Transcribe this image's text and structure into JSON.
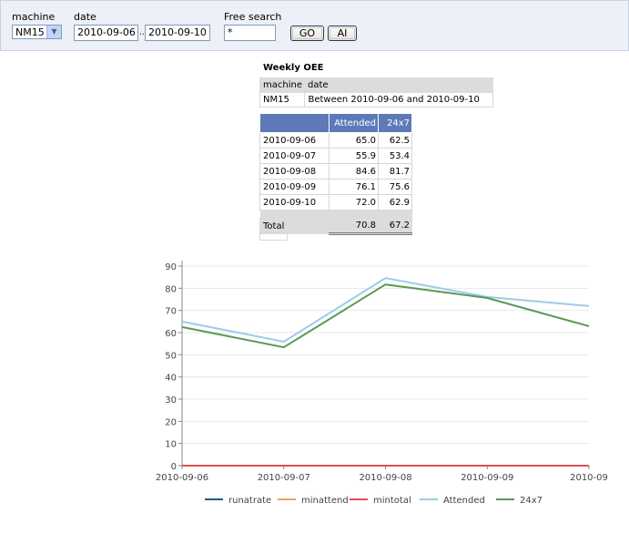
{
  "toolbar": {
    "machine_label": "machine",
    "machine_value": "NM15",
    "date_label": "date",
    "date_from": "2010-09-06",
    "date_sep": "..",
    "date_to": "2010-09-10",
    "search_label": "Free search",
    "search_value": "*",
    "go_label": "GO",
    "ai_label": "AI"
  },
  "report": {
    "title": "Weekly OEE",
    "criteria_headers": [
      "machine",
      "date"
    ],
    "criteria_values": [
      "NM15",
      "Between 2010-09-06 and 2010-09-10"
    ],
    "columns": [
      "",
      "Attended",
      "24x7"
    ],
    "rows": [
      {
        "date": "2010-09-06",
        "attended": "65.0",
        "x247": "62.5"
      },
      {
        "date": "2010-09-07",
        "attended": "55.9",
        "x247": "53.4"
      },
      {
        "date": "2010-09-08",
        "attended": "84.6",
        "x247": "81.7"
      },
      {
        "date": "2010-09-09",
        "attended": "76.1",
        "x247": "75.6"
      },
      {
        "date": "2010-09-10",
        "attended": "72.0",
        "x247": "62.9"
      }
    ],
    "total": {
      "label": "Total",
      "attended": "70.8",
      "x247": "67.2"
    }
  },
  "chart_data": {
    "type": "line",
    "x": [
      "2010-09-06",
      "2010-09-07",
      "2010-09-08",
      "2010-09-09",
      "2010-09"
    ],
    "ylim": [
      0,
      90
    ],
    "yticks": [
      0,
      10,
      20,
      30,
      40,
      50,
      60,
      70,
      80,
      90
    ],
    "grid": true,
    "legend_position": "bottom",
    "series": [
      {
        "name": "runatrate",
        "color": "#1f5b8c",
        "values": [
          0,
          0,
          0,
          0,
          0
        ]
      },
      {
        "name": "minattend",
        "color": "#f4a05a",
        "values": [
          0,
          0,
          0,
          0,
          0
        ]
      },
      {
        "name": "mintotal",
        "color": "#d9534f",
        "values": [
          0,
          0,
          0,
          0,
          0
        ]
      },
      {
        "name": "Attended",
        "color": "#9ccbe8",
        "values": [
          65.0,
          55.9,
          84.6,
          76.1,
          72.0
        ]
      },
      {
        "name": "24x7",
        "color": "#5a9a55",
        "values": [
          62.5,
          53.4,
          81.7,
          75.6,
          62.9
        ]
      }
    ]
  }
}
